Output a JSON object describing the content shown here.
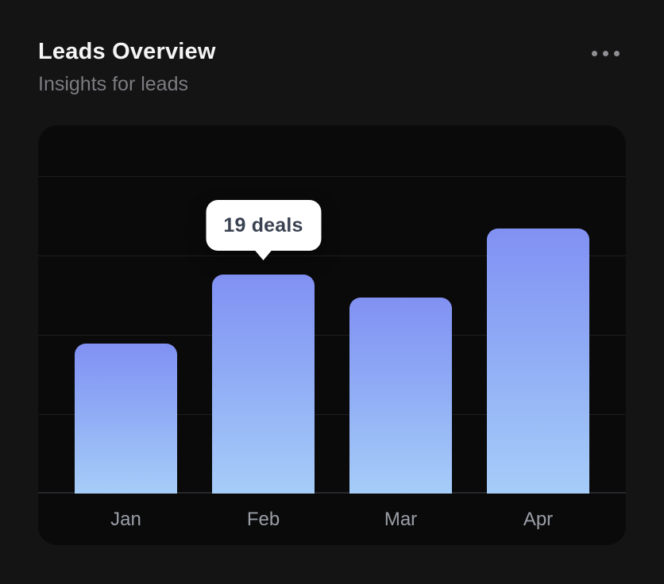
{
  "card": {
    "title": "Leads Overview",
    "subtitle": "Insights for leads",
    "icons": {
      "more": "ellipsis-horizontal"
    }
  },
  "tooltip": {
    "label": "19 deals",
    "category": "Feb"
  },
  "chart_data": {
    "type": "bar",
    "title": "Leads Overview",
    "subtitle": "Insights for leads",
    "categories": [
      "Jan",
      "Feb",
      "Mar",
      "Apr"
    ],
    "values": [
      13,
      19,
      17,
      23
    ],
    "unit": "deals",
    "labeled_point": {
      "category": "Feb",
      "value": 19,
      "label": "19 deals"
    },
    "xlabel": "",
    "ylabel": "",
    "ylim": [
      0,
      32
    ],
    "grid": "horizontal",
    "legend": "none",
    "colors": {
      "bar_gradient_top": "#8191f3",
      "bar_gradient_bottom": "#a6cdf8",
      "panel_bg": "#0a0a0b",
      "card_bg": "#141415",
      "gridline": "#1d1e21",
      "axis_label": "#9a9fa6",
      "title_text": "#f5f5f6",
      "subtitle_text": "#7c7c81",
      "tooltip_bg": "#ffffff",
      "tooltip_text": "#3a4251"
    }
  }
}
